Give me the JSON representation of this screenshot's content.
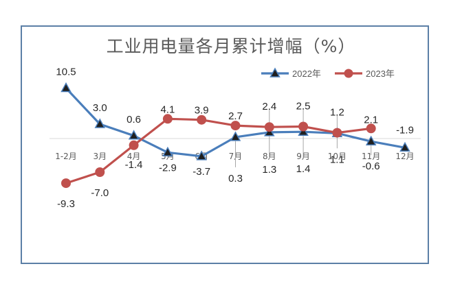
{
  "chart_data": {
    "type": "line",
    "title": "工业用电量各月累计增幅（%）",
    "categories": [
      "1-2月",
      "3月",
      "4月",
      "5月",
      "6月",
      "7月",
      "8月",
      "9月",
      "10月",
      "11月",
      "12月"
    ],
    "series": [
      {
        "name": "2022年",
        "color": "#4a7ebb",
        "marker": "triangle",
        "values": [
          10.5,
          3.0,
          0.6,
          -2.9,
          -3.7,
          0.3,
          1.3,
          1.4,
          1.1,
          -0.6,
          -1.9
        ],
        "labels": [
          "10.5",
          "3.0",
          "0.6",
          "-2.9",
          "-3.7",
          "0.3",
          "1.3",
          "1.4",
          "1.1",
          "-0.6",
          "-1.9"
        ]
      },
      {
        "name": "2023年",
        "color": "#c0504d",
        "marker": "circle",
        "values": [
          -9.3,
          -7.0,
          -1.4,
          4.1,
          3.9,
          2.7,
          2.4,
          2.5,
          1.2,
          2.1,
          null
        ],
        "labels": [
          "-9.3",
          "-7.0",
          "-1.4",
          "4.1",
          "3.9",
          "2.7",
          "2.4",
          "2.5",
          "1.2",
          "2.1",
          ""
        ]
      }
    ],
    "legend_position": "top-right",
    "grid": false
  }
}
